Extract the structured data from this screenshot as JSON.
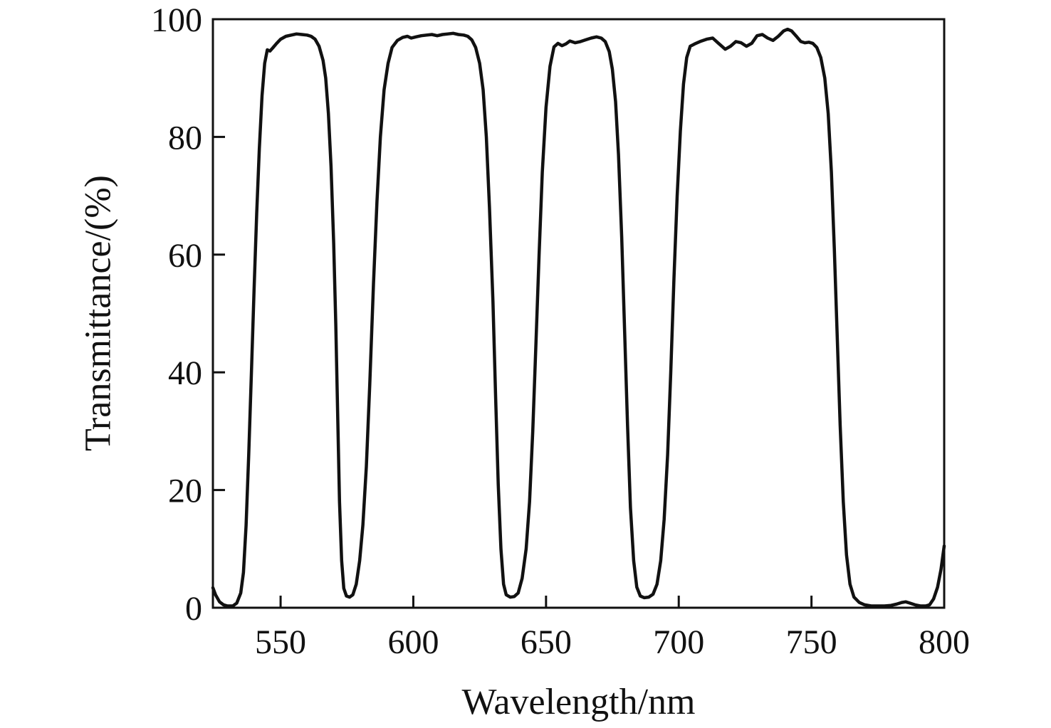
{
  "figure": {
    "background": "#ffffff",
    "line_color": "#111111",
    "axis_color": "#111111"
  },
  "chart_data": {
    "type": "line",
    "title": "",
    "xlabel": "Wavelength/nm",
    "ylabel": "Transmittance/(%)",
    "xlim": [
      524.5,
      800
    ],
    "ylim": [
      0,
      100
    ],
    "x_ticks": [
      550,
      600,
      650,
      700,
      750,
      800
    ],
    "y_ticks": [
      0,
      20,
      40,
      60,
      80,
      100
    ],
    "grid": false,
    "legend_position": "none",
    "series": [
      {
        "name": "transmittance-spectrum",
        "color": "#111111",
        "stroke_width": 4.5,
        "points": [
          [
            524.5,
            3.4
          ],
          [
            525.5,
            2.2
          ],
          [
            527,
            1.0
          ],
          [
            528.5,
            0.5
          ],
          [
            530,
            0.3
          ],
          [
            532,
            0.3
          ],
          [
            533.5,
            0.8
          ],
          [
            535,
            2.5
          ],
          [
            536,
            6
          ],
          [
            537,
            14
          ],
          [
            538,
            26
          ],
          [
            539,
            40
          ],
          [
            540,
            54
          ],
          [
            541,
            67
          ],
          [
            542,
            78
          ],
          [
            543,
            87
          ],
          [
            544,
            92.5
          ],
          [
            545,
            94.8
          ],
          [
            546,
            94.6
          ],
          [
            547,
            95.1
          ],
          [
            548.5,
            95.9
          ],
          [
            550,
            96.6
          ],
          [
            552,
            97.1
          ],
          [
            554,
            97.3
          ],
          [
            556,
            97.5
          ],
          [
            558,
            97.4
          ],
          [
            560,
            97.3
          ],
          [
            561.5,
            97.1
          ],
          [
            563,
            96.6
          ],
          [
            564.5,
            95.4
          ],
          [
            566,
            93
          ],
          [
            567,
            90
          ],
          [
            568,
            84
          ],
          [
            569,
            75
          ],
          [
            570,
            62
          ],
          [
            570.8,
            48
          ],
          [
            571.5,
            33
          ],
          [
            572.2,
            18
          ],
          [
            573,
            8
          ],
          [
            573.8,
            3.3
          ],
          [
            574.8,
            2.0
          ],
          [
            576,
            1.8
          ],
          [
            577.2,
            2.2
          ],
          [
            578.5,
            4
          ],
          [
            579.8,
            8
          ],
          [
            581,
            14
          ],
          [
            582.3,
            24
          ],
          [
            583.6,
            38
          ],
          [
            585,
            55
          ],
          [
            586.3,
            69
          ],
          [
            587.6,
            80
          ],
          [
            589,
            88
          ],
          [
            590.5,
            92.5
          ],
          [
            592,
            95.2
          ],
          [
            594,
            96.4
          ],
          [
            596,
            96.9
          ],
          [
            597.8,
            97.1
          ],
          [
            599.2,
            96.8
          ],
          [
            601,
            97.0
          ],
          [
            603,
            97.2
          ],
          [
            605,
            97.3
          ],
          [
            607,
            97.4
          ],
          [
            609,
            97.2
          ],
          [
            611,
            97.4
          ],
          [
            613,
            97.5
          ],
          [
            615,
            97.6
          ],
          [
            617,
            97.4
          ],
          [
            619,
            97.3
          ],
          [
            620.5,
            97.1
          ],
          [
            622,
            96.5
          ],
          [
            623.5,
            95.2
          ],
          [
            625,
            92.5
          ],
          [
            626.3,
            88
          ],
          [
            627.5,
            80
          ],
          [
            628.7,
            68
          ],
          [
            630,
            52
          ],
          [
            631,
            36
          ],
          [
            632,
            21
          ],
          [
            633,
            10
          ],
          [
            634,
            4
          ],
          [
            635,
            2.2
          ],
          [
            636.5,
            1.8
          ],
          [
            638,
            1.9
          ],
          [
            639.5,
            2.5
          ],
          [
            641,
            5
          ],
          [
            642.5,
            10
          ],
          [
            643.8,
            18
          ],
          [
            645,
            30
          ],
          [
            646.2,
            45
          ],
          [
            647.4,
            60
          ],
          [
            648.6,
            74
          ],
          [
            650,
            85
          ],
          [
            651.5,
            92
          ],
          [
            653,
            95.3
          ],
          [
            654.5,
            95.9
          ],
          [
            656,
            95.5
          ],
          [
            657.5,
            95.8
          ],
          [
            659,
            96.3
          ],
          [
            661,
            96.0
          ],
          [
            663,
            96.2
          ],
          [
            665,
            96.5
          ],
          [
            667,
            96.8
          ],
          [
            669,
            97.0
          ],
          [
            670.8,
            96.8
          ],
          [
            672.3,
            96.2
          ],
          [
            673.8,
            94.5
          ],
          [
            675,
            91.5
          ],
          [
            676.2,
            86
          ],
          [
            677.3,
            77
          ],
          [
            678.5,
            63
          ],
          [
            679.6,
            47
          ],
          [
            680.7,
            31
          ],
          [
            681.8,
            17
          ],
          [
            683,
            8
          ],
          [
            684.2,
            3.5
          ],
          [
            685.5,
            2.0
          ],
          [
            687,
            1.7
          ],
          [
            688.7,
            1.8
          ],
          [
            690.3,
            2.3
          ],
          [
            691.8,
            4
          ],
          [
            693.2,
            8
          ],
          [
            694.5,
            15
          ],
          [
            695.8,
            26
          ],
          [
            697,
            40
          ],
          [
            698.2,
            56
          ],
          [
            699.4,
            70
          ],
          [
            700.6,
            81
          ],
          [
            701.8,
            89
          ],
          [
            703,
            93.5
          ],
          [
            704.3,
            95.4
          ],
          [
            706,
            95.8
          ],
          [
            708,
            96.2
          ],
          [
            710.5,
            96.6
          ],
          [
            712.8,
            96.8
          ],
          [
            715,
            95.9
          ],
          [
            717.5,
            94.9
          ],
          [
            719.5,
            95.4
          ],
          [
            721.5,
            96.2
          ],
          [
            723.5,
            96.0
          ],
          [
            725.5,
            95.4
          ],
          [
            727.5,
            95.9
          ],
          [
            729.5,
            97.2
          ],
          [
            731.5,
            97.4
          ],
          [
            733.5,
            96.8
          ],
          [
            735.5,
            96.4
          ],
          [
            737.5,
            97.1
          ],
          [
            739.5,
            98.0
          ],
          [
            741,
            98.3
          ],
          [
            742.5,
            98.0
          ],
          [
            744.5,
            97.0
          ],
          [
            746,
            96.2
          ],
          [
            747.5,
            96.0
          ],
          [
            749,
            96.1
          ],
          [
            750.5,
            95.9
          ],
          [
            752,
            95.2
          ],
          [
            753.5,
            93.5
          ],
          [
            755,
            90
          ],
          [
            756.3,
            84
          ],
          [
            757.5,
            74
          ],
          [
            758.6,
            61
          ],
          [
            759.7,
            46
          ],
          [
            760.8,
            31
          ],
          [
            762,
            18
          ],
          [
            763.2,
            9
          ],
          [
            764.5,
            4
          ],
          [
            766,
            1.8
          ],
          [
            768,
            0.9
          ],
          [
            770,
            0.5
          ],
          [
            772.5,
            0.3
          ],
          [
            775,
            0.3
          ],
          [
            777.5,
            0.3
          ],
          [
            780,
            0.4
          ],
          [
            782,
            0.6
          ],
          [
            784,
            0.9
          ],
          [
            785.5,
            1.0
          ],
          [
            787,
            0.8
          ],
          [
            789,
            0.5
          ],
          [
            791,
            0.3
          ],
          [
            793,
            0.3
          ],
          [
            794.5,
            0.5
          ],
          [
            796,
            1.5
          ],
          [
            797.5,
            3.5
          ],
          [
            798.8,
            6.5
          ],
          [
            800,
            10.5
          ]
        ]
      }
    ]
  }
}
